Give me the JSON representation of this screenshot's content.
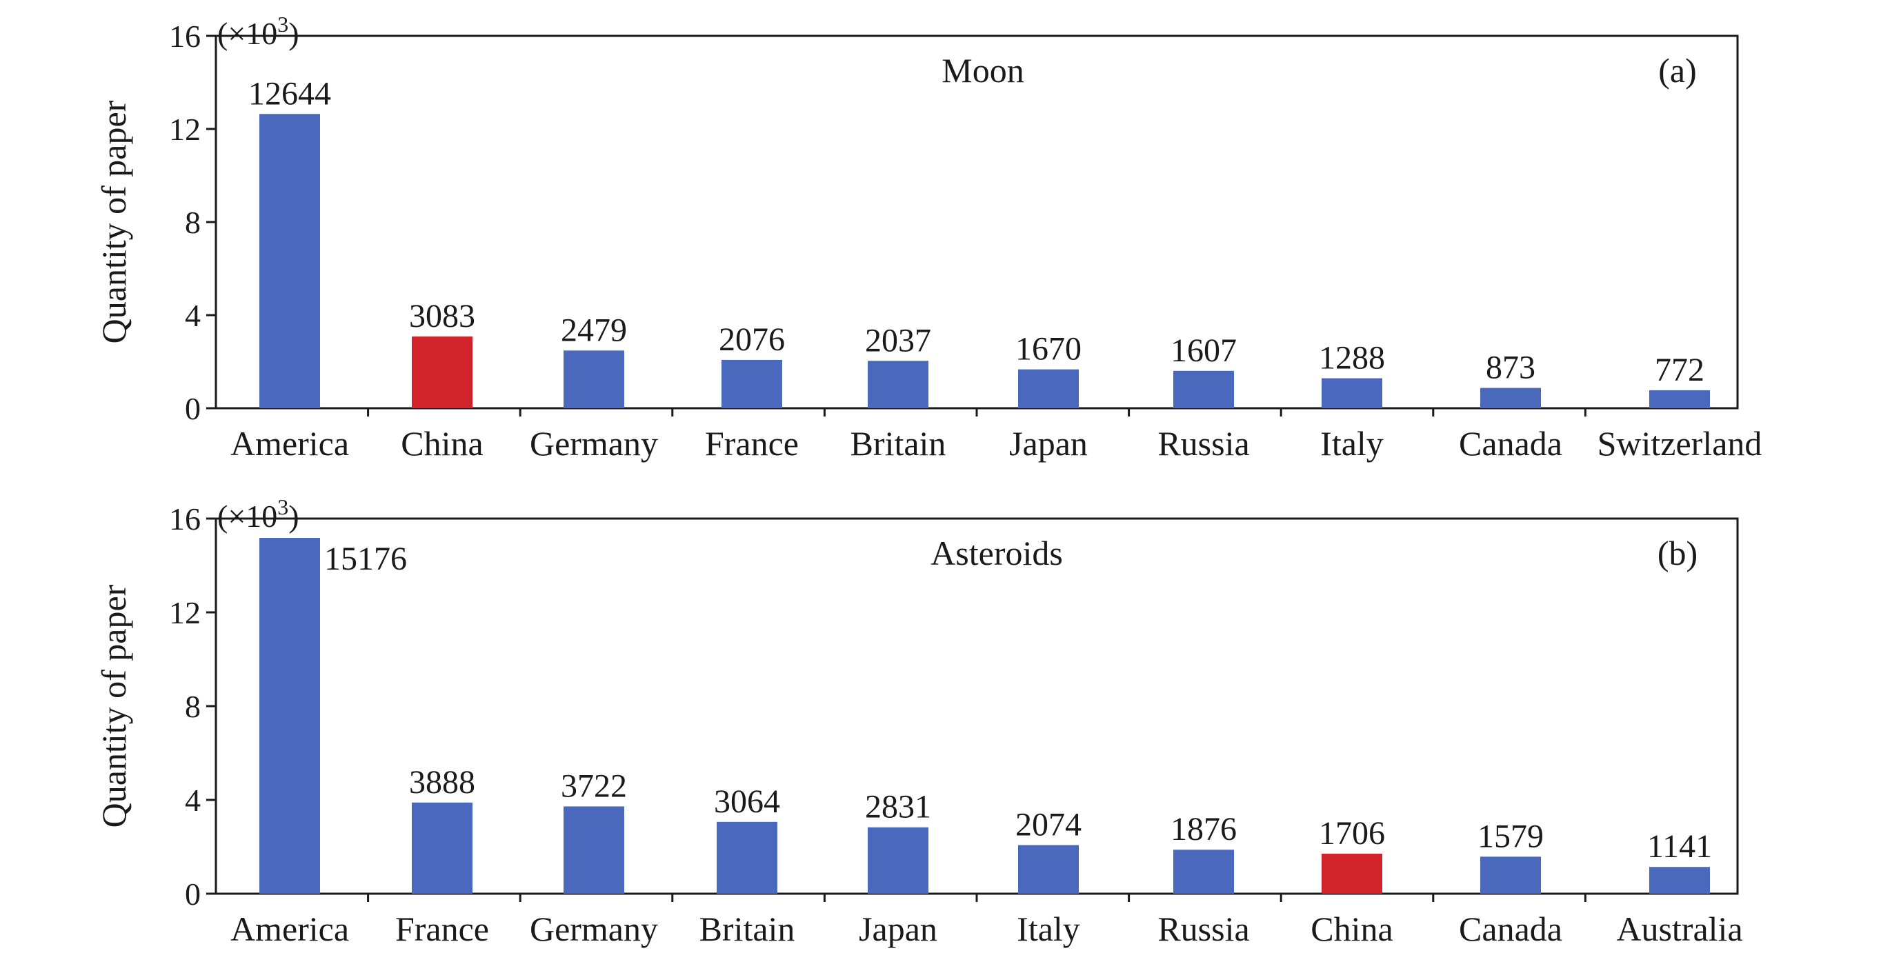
{
  "chart_data": [
    {
      "type": "bar",
      "title": "Moon",
      "panel_label": "(a)",
      "ylabel": "Quantity of paper",
      "y_multiplier": "(×10",
      "y_multiplier_exp": "3",
      "y_multiplier_close": ")",
      "ylim": [
        0,
        16
      ],
      "yticks": [
        "0",
        "4",
        "8",
        "12",
        "16"
      ],
      "yticks_values": [
        0,
        4,
        8,
        12,
        16
      ],
      "categories": [
        "America",
        "China",
        "Germany",
        "France",
        "Britain",
        "Japan",
        "Russia",
        "Italy",
        "Canada",
        "Switzerland"
      ],
      "values": [
        12644,
        3083,
        2479,
        2076,
        2037,
        1670,
        1607,
        1288,
        873,
        772
      ],
      "value_labels": [
        "12644",
        "3083",
        "2479",
        "2076",
        "2037",
        "1670",
        "1607",
        "1288",
        "873",
        "772"
      ],
      "highlight_index": 1,
      "bar_color": "#4a69bd",
      "highlight_color": "#d1232a",
      "grid": false
    },
    {
      "type": "bar",
      "title": "Asteroids",
      "panel_label": "(b)",
      "ylabel": "Quantity of paper",
      "y_multiplier": "(×10",
      "y_multiplier_exp": "3",
      "y_multiplier_close": ")",
      "ylim": [
        0,
        16
      ],
      "yticks": [
        "0",
        "4",
        "8",
        "12",
        "16"
      ],
      "yticks_values": [
        0,
        4,
        8,
        12,
        16
      ],
      "categories": [
        "America",
        "France",
        "Germany",
        "Britain",
        "Japan",
        "Italy",
        "Russia",
        "China",
        "Canada",
        "Australia"
      ],
      "values": [
        15176,
        3888,
        3722,
        3064,
        2831,
        2074,
        1876,
        1706,
        1579,
        1141
      ],
      "value_labels": [
        "15176",
        "3888",
        "3722",
        "3064",
        "2831",
        "2074",
        "1876",
        "1706",
        "1579",
        "1141"
      ],
      "highlight_index": 7,
      "bar_color": "#4a69bd",
      "highlight_color": "#d1232a",
      "grid": false
    }
  ]
}
